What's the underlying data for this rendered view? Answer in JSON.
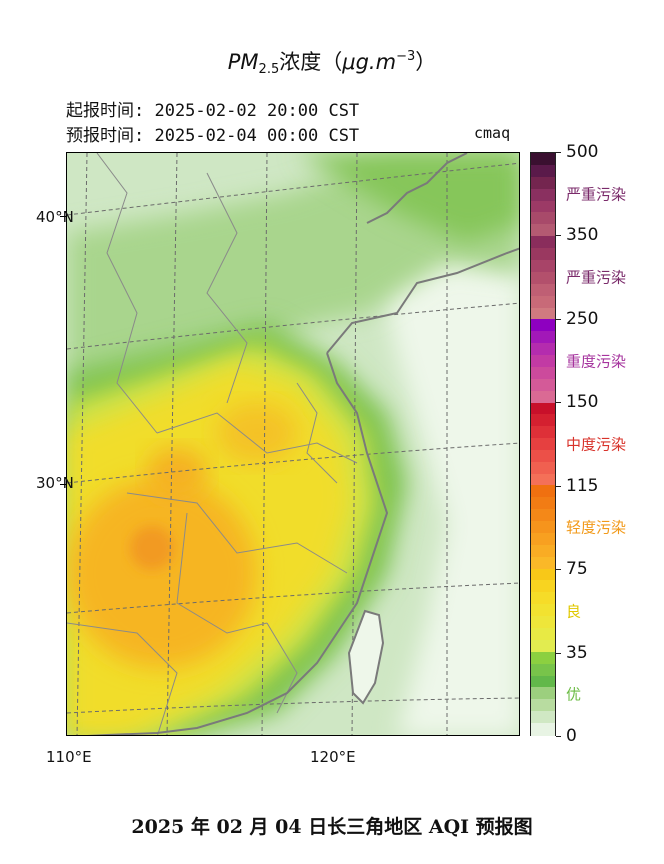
{
  "figure": {
    "title_prefix": "PM",
    "title_sub": "2.5",
    "title_mid": "浓度（",
    "title_unit": "μg.m",
    "title_exp": "−3",
    "title_end": "）",
    "issue_time": "起报时间: 2025-02-02 20:00 CST",
    "forecast_time": "预报时间: 2025-02-04 00:00 CST",
    "model": "cmaq",
    "caption": "2025 年 02 月 04 日长三角地区 AQI 预报图"
  },
  "axes": {
    "lat_labels": [
      "40°N",
      "30°N"
    ],
    "lon_labels": [
      "110°E",
      "120°E"
    ]
  },
  "colorbar": {
    "ticks": [
      "500",
      "350",
      "250",
      "150",
      "115",
      "75",
      "35",
      "0"
    ],
    "categories": [
      {
        "label": "严重污染",
        "color": "#7a2a6a"
      },
      {
        "label": "严重污染",
        "color": "#7a2a6a"
      },
      {
        "label": "重度污染",
        "color": "#a6349e"
      },
      {
        "label": "中度污染",
        "color": "#d8322a"
      },
      {
        "label": "轻度污染",
        "color": "#f29a1a"
      },
      {
        "label": "良",
        "color": "#e0c800"
      },
      {
        "label": "优",
        "color": "#6cbc45"
      }
    ],
    "segments": [
      {
        "from": 0,
        "to": 0.143,
        "colors": [
          "#3a1030",
          "#5a1a4a",
          "#74254f",
          "#8a3060",
          "#9c3a66",
          "#a84a6a",
          "#b45a72"
        ]
      },
      {
        "from": 0.143,
        "to": 0.286,
        "colors": [
          "#8a2d5c",
          "#9a3860",
          "#a84468",
          "#b3506c",
          "#bf5f74",
          "#c86a78",
          "#d07a80"
        ]
      },
      {
        "from": 0.286,
        "to": 0.429,
        "colors": [
          "#8e00c0",
          "#a218b8",
          "#b42cae",
          "#c23aa4",
          "#cc4a9c",
          "#d45a98",
          "#da6a94"
        ]
      },
      {
        "from": 0.429,
        "to": 0.571,
        "colors": [
          "#c8102a",
          "#d42030",
          "#de3038",
          "#e64040",
          "#ec5048",
          "#f06050",
          "#f47058"
        ]
      },
      {
        "from": 0.571,
        "to": 0.714,
        "colors": [
          "#f07010",
          "#f27c14",
          "#f48818",
          "#f6941c",
          "#f8a020",
          "#f9ac24",
          "#fab828"
        ]
      },
      {
        "from": 0.714,
        "to": 0.857,
        "colors": [
          "#f8c818",
          "#f8d420",
          "#f6dc28",
          "#f2e230",
          "#eee63a",
          "#e8ea44",
          "#e2ec50"
        ]
      },
      {
        "from": 0.857,
        "to": 1.0,
        "colors": [
          "#8cd040",
          "#78c44a",
          "#62b84a",
          "#9ccf7e",
          "#b8dca0",
          "#d0e8c4",
          "#e8f4e4"
        ]
      }
    ]
  }
}
